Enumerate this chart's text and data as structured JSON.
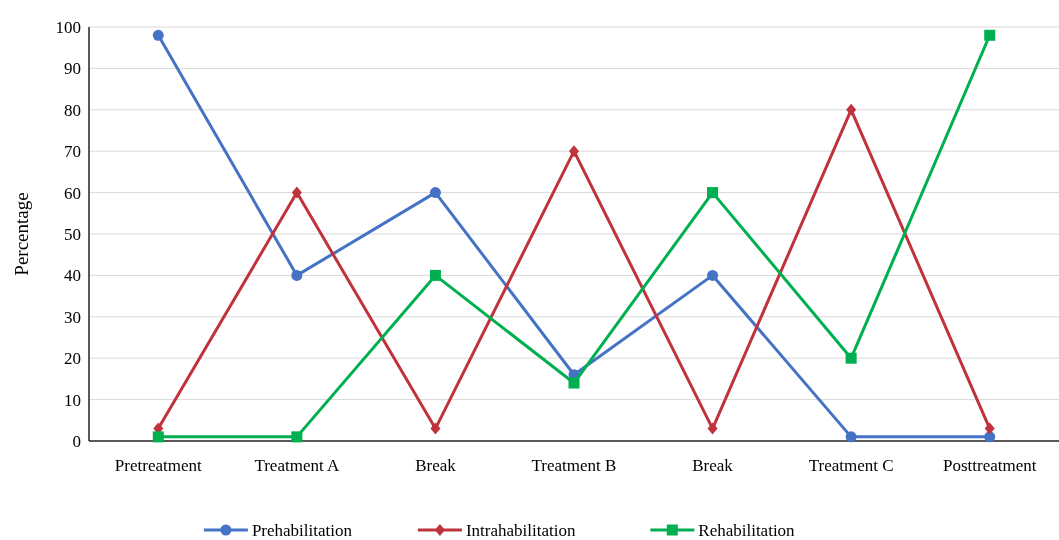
{
  "chart_data": {
    "type": "line",
    "ylabel": "Percentage",
    "categories": [
      "Pretreatment",
      "Treatment A",
      "Break",
      "Treatment B",
      "Break",
      "Treatment C",
      "Posttreatment"
    ],
    "series": [
      {
        "name": "Prehabilitation",
        "color": "#4472c4",
        "marker": "circle",
        "values": [
          98,
          40,
          60,
          16,
          40,
          1,
          1
        ]
      },
      {
        "name": "Intrahabilitation",
        "color": "#c0323c",
        "marker": "diamond",
        "values": [
          3,
          60,
          3,
          70,
          3,
          80,
          3
        ]
      },
      {
        "name": "Rehabilitation",
        "color": "#00b050",
        "marker": "square",
        "values": [
          1,
          1,
          40,
          14,
          60,
          20,
          98
        ]
      }
    ],
    "ylim": [
      0,
      100
    ],
    "yticks": [
      0,
      10,
      20,
      30,
      40,
      50,
      60,
      70,
      80,
      90,
      100
    ],
    "grid": "y",
    "legend": "bottom",
    "line_style": "solid"
  }
}
